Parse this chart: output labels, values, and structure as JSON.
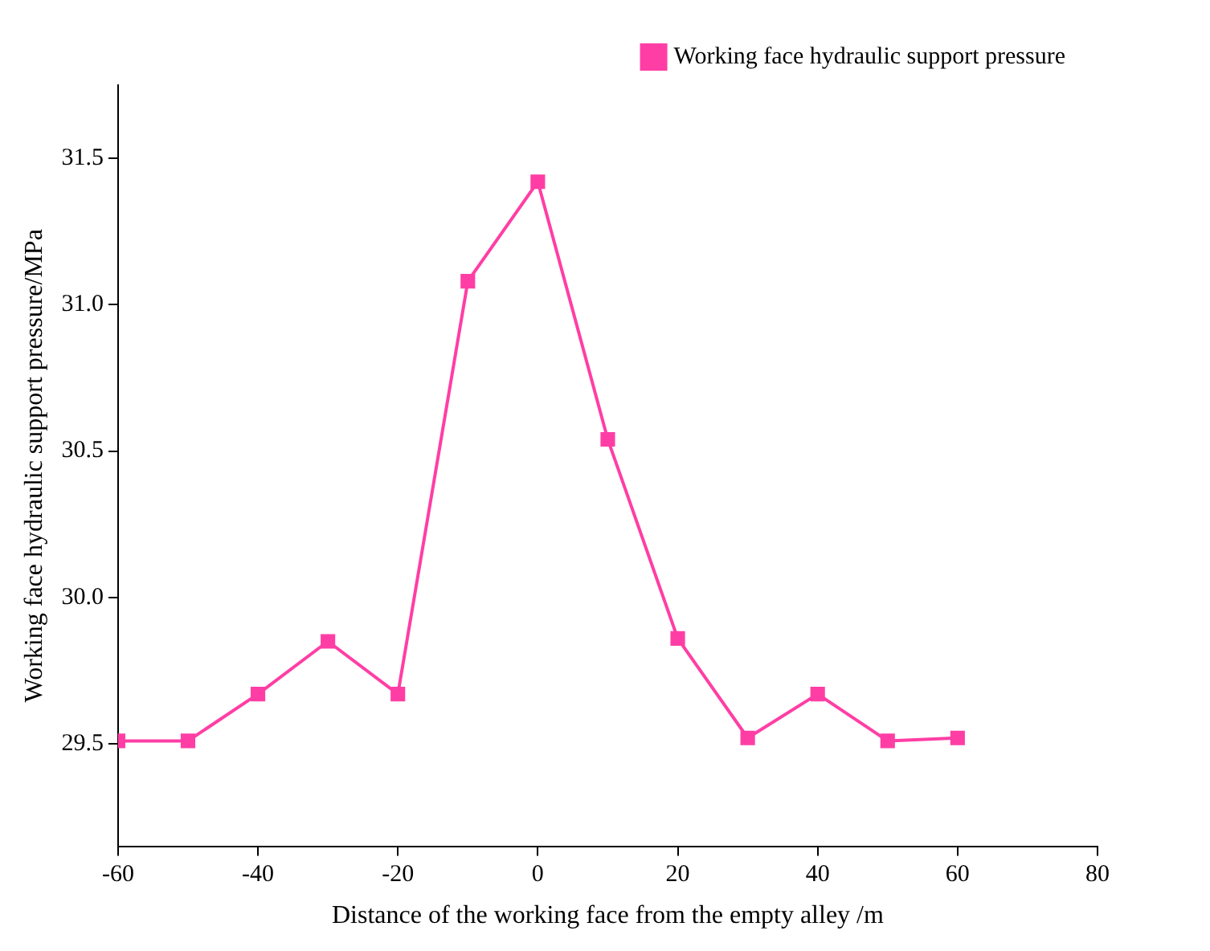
{
  "chart_data": {
    "type": "line",
    "xlabel": "Distance of the working face from the empty alley /m",
    "ylabel": "Working face hydraulic support pressure/MPa",
    "x": [
      -60,
      -50,
      -40,
      -30,
      -20,
      -10,
      0,
      10,
      20,
      30,
      40,
      50,
      60
    ],
    "series": [
      {
        "name": "Working face hydraulic support pressure",
        "color": "#ff3ea5",
        "values": [
          29.51,
          29.51,
          29.67,
          29.85,
          29.67,
          31.08,
          31.42,
          30.54,
          29.86,
          29.52,
          29.67,
          29.51,
          29.52
        ]
      }
    ],
    "xlim": [
      -60,
      80
    ],
    "xticks": [
      -60,
      -40,
      -20,
      0,
      20,
      40,
      60,
      80
    ],
    "ylim": [
      29.15,
      31.75
    ],
    "yticks": [
      29.5,
      {
        "value": 30,
        "label": "30.0"
      },
      30.5,
      {
        "value": 31,
        "label": "31.0"
      },
      31.5
    ],
    "legend": "top right",
    "marker": "square",
    "line_style": "solid"
  }
}
